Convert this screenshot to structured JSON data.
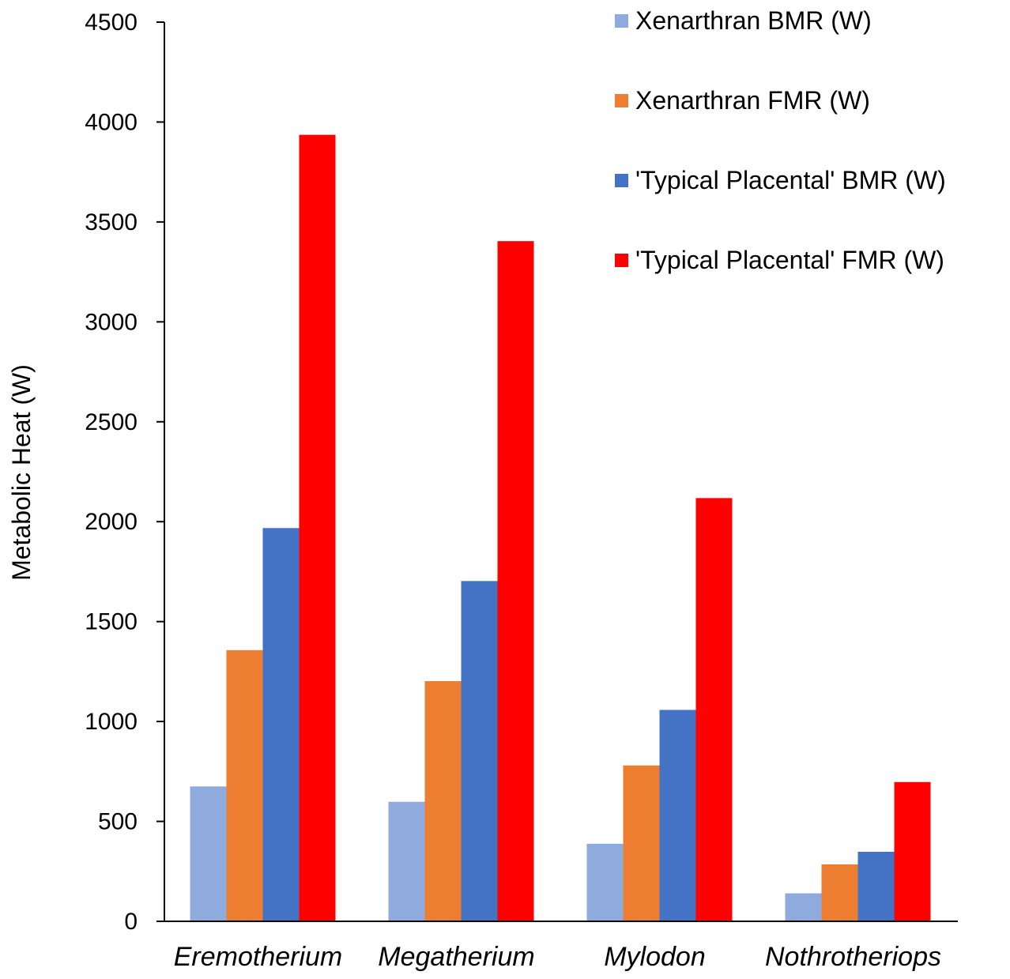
{
  "chart_data": {
    "type": "bar",
    "title": "",
    "xlabel": "",
    "ylabel": "Metabolic Heat (W)",
    "ylim": [
      0,
      4500
    ],
    "yticks": [
      0,
      500,
      1000,
      1500,
      2000,
      2500,
      3000,
      3500,
      4000,
      4500
    ],
    "grid": false,
    "legend_position": "top-right",
    "categories": [
      "Eremotherium",
      "Megatherium",
      "Mylodon",
      "Nothrotheriops"
    ],
    "series": [
      {
        "name": "Xenarthran BMR (W)",
        "color": "#8faadc",
        "values": [
          675,
          598,
          388,
          140
        ]
      },
      {
        "name": "Xenarthran FMR (W)",
        "color": "#ed7d31",
        "values": [
          1357,
          1202,
          780,
          285
        ]
      },
      {
        "name": "'Typical Placental' BMR (W)",
        "color": "#4472c4",
        "values": [
          1968,
          1703,
          1058,
          348
        ]
      },
      {
        "name": "'Typical Placental' FMR (W)",
        "color": "#ff0000",
        "values": [
          3936,
          3404,
          2118,
          697
        ]
      }
    ]
  }
}
